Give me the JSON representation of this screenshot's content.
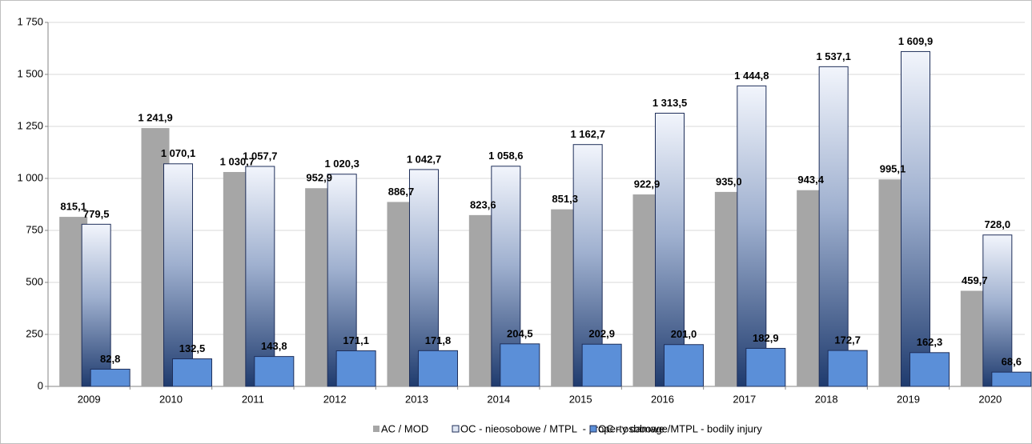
{
  "chart_data": {
    "type": "bar",
    "categories": [
      "2009",
      "2010",
      "2011",
      "2012",
      "2013",
      "2014",
      "2015",
      "2016",
      "2017",
      "2018",
      "2019",
      "2020"
    ],
    "series": [
      {
        "name": "AC / MOD",
        "color": "#a6a6a6",
        "values": [
          815.1,
          1241.9,
          1030.7,
          952.9,
          886.7,
          823.6,
          851.3,
          922.9,
          935.0,
          943.4,
          995.1,
          459.7
        ],
        "value_labels": [
          "815,1",
          "1 241,9",
          "1 030,7",
          "952,9",
          "886,7",
          "823,6",
          "851,3",
          "922,9",
          "935,0",
          "943,4",
          "995,1",
          "459,7"
        ]
      },
      {
        "name": "OC - nieosobowe / MTPL  - property damage",
        "color": "#1f3b6e",
        "values": [
          779.5,
          1070.1,
          1057.7,
          1020.3,
          1042.7,
          1058.6,
          1162.7,
          1313.5,
          1444.8,
          1537.1,
          1609.9,
          728.0
        ],
        "value_labels": [
          "779,5",
          "1 070,1",
          "1 057,7",
          "1 020,3",
          "1 042,7",
          "1 058,6",
          "1 162,7",
          "1 313,5",
          "1 444,8",
          "1 537,1",
          "1 609,9",
          "728,0"
        ]
      },
      {
        "name": "OC - osobowe /MTPL - bodily injury",
        "color": "#5b8fd8",
        "values": [
          82.8,
          132.5,
          143.8,
          171.1,
          171.8,
          204.5,
          202.9,
          201.0,
          182.9,
          172.7,
          162.3,
          68.6
        ],
        "value_labels": [
          "82,8",
          "132,5",
          "143,8",
          "171,1",
          "171,8",
          "204,5",
          "202,9",
          "201,0",
          "182,9",
          "172,7",
          "162,3",
          "68,6"
        ]
      }
    ],
    "ylim": [
      0,
      1750
    ],
    "yticks": [
      0,
      250,
      500,
      750,
      {
        "value": 1000,
        "label": "1 000"
      },
      {
        "value": 1250,
        "label": "1 250"
      },
      {
        "value": 1500,
        "label": "1 500"
      },
      {
        "value": 1750,
        "label": "1 750"
      }
    ],
    "grid": true,
    "legend": "bottom"
  }
}
